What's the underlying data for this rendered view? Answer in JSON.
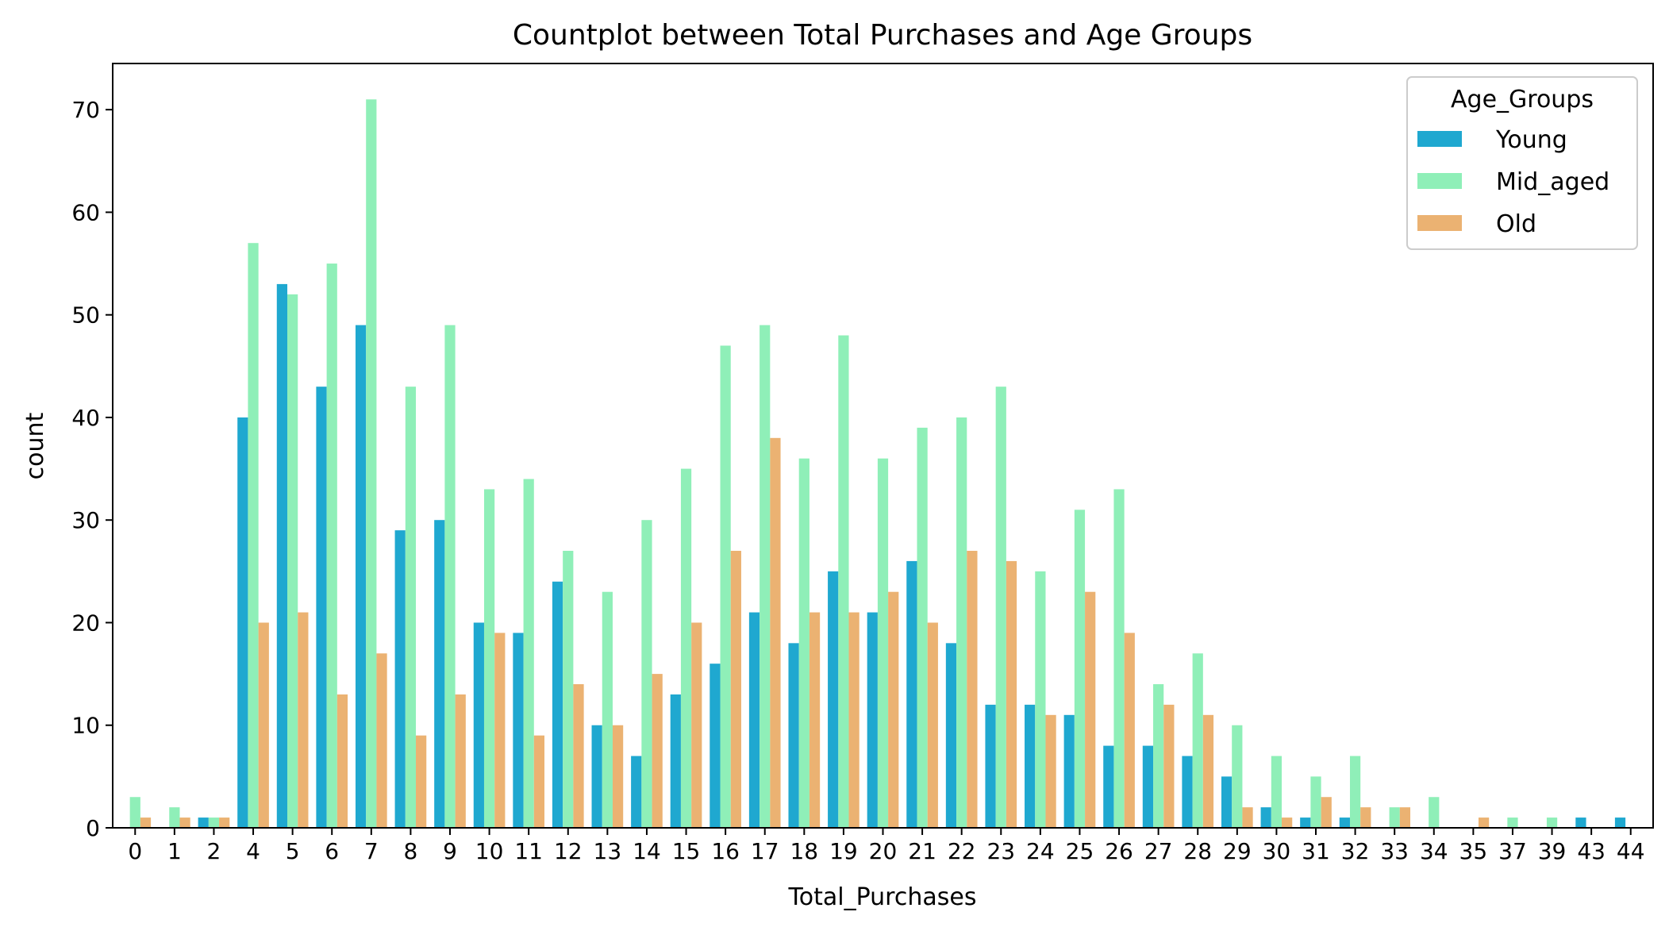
{
  "chart_data": {
    "type": "bar",
    "title": "Countplot between Total Purchases and Age Groups",
    "xlabel": "Total_Purchases",
    "ylabel": "count",
    "ylim": [
      0,
      74.5
    ],
    "yticks": [
      0,
      10,
      20,
      30,
      40,
      50,
      60,
      70
    ],
    "categories": [
      "0",
      "1",
      "2",
      "4",
      "5",
      "6",
      "7",
      "8",
      "9",
      "10",
      "11",
      "12",
      "13",
      "14",
      "15",
      "16",
      "17",
      "18",
      "19",
      "20",
      "21",
      "22",
      "23",
      "24",
      "25",
      "26",
      "27",
      "28",
      "29",
      "30",
      "31",
      "32",
      "33",
      "34",
      "35",
      "37",
      "39",
      "43",
      "44"
    ],
    "legend": {
      "title": "Age_Groups",
      "position": "top-right"
    },
    "grid": false,
    "series": [
      {
        "name": "Young",
        "color": "#1fa8d0",
        "values": [
          0,
          0,
          1,
          40,
          53,
          43,
          49,
          29,
          30,
          20,
          19,
          24,
          10,
          7,
          13,
          16,
          21,
          18,
          25,
          21,
          26,
          18,
          12,
          12,
          11,
          8,
          8,
          7,
          5,
          2,
          1,
          1,
          0,
          0,
          0,
          0,
          0,
          1,
          1
        ]
      },
      {
        "name": "Mid_aged",
        "color": "#8fefb8",
        "values": [
          3,
          2,
          1,
          57,
          52,
          55,
          71,
          43,
          49,
          33,
          34,
          27,
          23,
          30,
          35,
          47,
          49,
          36,
          48,
          36,
          39,
          40,
          43,
          25,
          31,
          33,
          14,
          17,
          10,
          7,
          5,
          7,
          2,
          3,
          0,
          1,
          1,
          0,
          0
        ]
      },
      {
        "name": "Old",
        "color": "#ebb272",
        "values": [
          1,
          1,
          1,
          20,
          21,
          13,
          17,
          9,
          13,
          19,
          9,
          14,
          10,
          15,
          20,
          27,
          38,
          21,
          21,
          23,
          20,
          27,
          26,
          11,
          23,
          19,
          12,
          11,
          2,
          1,
          3,
          2,
          2,
          0,
          1,
          0,
          0,
          0,
          0
        ]
      }
    ]
  }
}
